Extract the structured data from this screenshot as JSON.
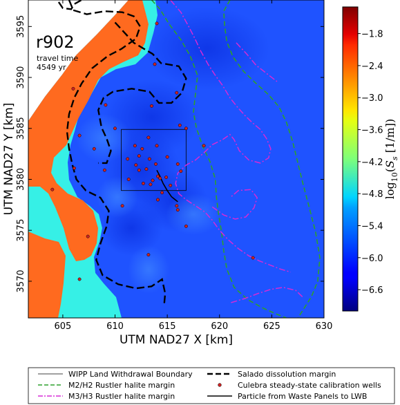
{
  "chart_data": {
    "type": "heatmap",
    "run_label": "r902",
    "annotation": {
      "line1": "travel time",
      "line2": "4549 yr"
    },
    "xlabel": "UTM NAD27 X [km]",
    "ylabel": "UTM NAD27 Y [km]",
    "xlim": [
      601.7,
      630.0
    ],
    "ylim": [
      3566.4,
      3597.6
    ],
    "xticks": [
      605,
      610,
      615,
      620,
      625,
      630
    ],
    "yticks": [
      3570,
      3575,
      3580,
      3585,
      3590,
      3595
    ],
    "colorbar": {
      "label": "log10(S_s [1/m])",
      "range": [
        -7.0,
        -1.3
      ],
      "ticks": [
        -1.8,
        -2.4,
        -3.0,
        -3.6,
        -4.2,
        -4.8,
        -5.4,
        -6.0,
        -6.6
      ],
      "tick_labels": [
        "−1.8",
        "−2.4",
        "−3.0",
        "−3.6",
        "−4.2",
        "−4.8",
        "−5.4",
        "−6.0",
        "−6.6"
      ],
      "colormap": "jet"
    },
    "fields": {
      "background_log_ss": -6.4,
      "orange_zone_log_ss": -2.4,
      "cyan_zone_log_ss": -5.0,
      "colors": {
        "orange": "#ff6a1f",
        "cyan": "#36f0e6",
        "blue": "#1f53ff",
        "dark_blue": "#0a2ee0"
      }
    },
    "wipp_boundary": {
      "x": [
        610.6,
        616.8
      ],
      "y": [
        3578.9,
        3584.9
      ]
    },
    "calibration_wells": [
      [
        614.0,
        3595.3
      ],
      [
        613.8,
        3591.3
      ],
      [
        606.0,
        3588.9
      ],
      [
        615.9,
        3588.5
      ],
      [
        609.1,
        3587.3
      ],
      [
        613.5,
        3587.2
      ],
      [
        616.2,
        3585.3
      ],
      [
        610.0,
        3585.0
      ],
      [
        616.8,
        3585.0
      ],
      [
        606.6,
        3584.3
      ],
      [
        613.2,
        3584.1
      ],
      [
        611.9,
        3583.3
      ],
      [
        614.0,
        3583.3
      ],
      [
        608.0,
        3583.0
      ],
      [
        612.6,
        3583.0
      ],
      [
        618.5,
        3583.3
      ],
      [
        612.3,
        3582.3
      ],
      [
        615.0,
        3582.2
      ],
      [
        613.3,
        3582.0
      ],
      [
        611.2,
        3582.0
      ],
      [
        613.9,
        3581.5
      ],
      [
        612.0,
        3581.4
      ],
      [
        606.1,
        3581.1
      ],
      [
        616.0,
        3581.5
      ],
      [
        613.0,
        3581.0
      ],
      [
        609.0,
        3580.9
      ],
      [
        612.3,
        3580.9
      ],
      [
        614.1,
        3580.3
      ],
      [
        614.3,
        3580.1
      ],
      [
        614.9,
        3580.2
      ],
      [
        611.3,
        3580.0
      ],
      [
        613.6,
        3579.9
      ],
      [
        613.4,
        3579.5
      ],
      [
        612.7,
        3579.6
      ],
      [
        615.3,
        3579.4
      ],
      [
        616.3,
        3580.8
      ],
      [
        614.5,
        3578.7
      ],
      [
        604.0,
        3579.0
      ],
      [
        614.1,
        3578.0
      ],
      [
        610.7,
        3577.4
      ],
      [
        615.9,
        3577.4
      ],
      [
        616.0,
        3577.0
      ],
      [
        616.8,
        3575.4
      ],
      [
        607.4,
        3574.4
      ],
      [
        613.2,
        3572.6
      ],
      [
        623.2,
        3572.3
      ],
      [
        606.6,
        3570.2
      ]
    ],
    "particle_path": [
      [
        614.0,
        3580.9
      ],
      [
        614.3,
        3580.3
      ],
      [
        614.6,
        3579.6
      ],
      [
        615.0,
        3578.9
      ],
      [
        615.4,
        3578.3
      ],
      [
        616.0,
        3577.8
      ]
    ],
    "salado_margin": [
      [
        605.6,
        3597.6
      ],
      [
        606.0,
        3596.6
      ],
      [
        607.3,
        3596.2
      ],
      [
        609.0,
        3596.5
      ],
      [
        610.7,
        3596.4
      ],
      [
        611.8,
        3596.0
      ],
      [
        612.4,
        3595.0
      ],
      [
        612.0,
        3593.8
      ],
      [
        610.6,
        3592.8
      ],
      [
        609.3,
        3592.1
      ],
      [
        607.8,
        3590.9
      ],
      [
        606.8,
        3589.4
      ],
      [
        606.1,
        3588.0
      ],
      [
        605.6,
        3586.4
      ],
      [
        605.4,
        3584.7
      ],
      [
        605.6,
        3583.0
      ],
      [
        605.9,
        3581.5
      ],
      [
        606.3,
        3580.0
      ],
      [
        607.2,
        3578.9
      ],
      [
        608.6,
        3578.2
      ],
      [
        609.4,
        3576.9
      ],
      [
        609.2,
        3575.4
      ],
      [
        608.6,
        3573.7
      ],
      [
        608.2,
        3572.1
      ],
      [
        608.8,
        3570.6
      ],
      [
        610.3,
        3569.7
      ],
      [
        612.0,
        3569.3
      ],
      [
        613.5,
        3569.5
      ],
      [
        614.5,
        3570.2
      ],
      [
        614.8,
        3568.8
      ],
      [
        614.7,
        3567.7
      ]
    ],
    "salado_margin_north": [
      [
        604.6,
        3597.4
      ],
      [
        605.0,
        3596.8
      ],
      [
        605.8,
        3596.7
      ],
      [
        606.1,
        3597.2
      ],
      [
        606.8,
        3597.6
      ]
    ],
    "salado_margin_inner": [
      [
        610.0,
        3595.4
      ],
      [
        611.8,
        3593.4
      ],
      [
        613.6,
        3592.3
      ],
      [
        614.4,
        3591.4
      ],
      [
        616.1,
        3591.1
      ],
      [
        616.8,
        3589.9
      ],
      [
        616.4,
        3588.5
      ],
      [
        615.4,
        3587.5
      ],
      [
        614.2,
        3587.5
      ],
      [
        613.3,
        3588.6
      ],
      [
        611.6,
        3588.9
      ],
      [
        609.8,
        3588.6
      ],
      [
        608.9,
        3588.0
      ],
      [
        608.4,
        3586.8
      ],
      [
        608.7,
        3585.1
      ],
      [
        609.2,
        3584.0
      ],
      [
        609.6,
        3582.8
      ],
      [
        609.2,
        3581.6
      ],
      [
        608.4,
        3581.6
      ]
    ],
    "m2h2_margin": [
      [
        613.5,
        3597.6
      ],
      [
        614.3,
        3596.7
      ],
      [
        615.2,
        3595.2
      ],
      [
        616.3,
        3593.7
      ],
      [
        617.2,
        3592.1
      ],
      [
        617.9,
        3590.2
      ],
      [
        617.7,
        3588.4
      ],
      [
        617.5,
        3586.6
      ],
      [
        617.8,
        3585.0
      ],
      [
        618.4,
        3583.2
      ],
      [
        619.1,
        3581.7
      ],
      [
        619.6,
        3580.0
      ],
      [
        619.7,
        3578.3
      ],
      [
        619.9,
        3576.6
      ],
      [
        620.2,
        3574.8
      ],
      [
        620.4,
        3573.0
      ],
      [
        620.7,
        3571.2
      ],
      [
        621.4,
        3569.4
      ],
      [
        622.7,
        3568.2
      ],
      [
        624.1,
        3567.4
      ],
      [
        625.4,
        3566.8
      ],
      [
        626.4,
        3566.4
      ]
    ],
    "m2h2_margin_east": [
      [
        621.0,
        3597.6
      ],
      [
        620.4,
        3596.5
      ],
      [
        620.5,
        3595.0
      ],
      [
        620.7,
        3593.5
      ],
      [
        621.3,
        3592.0
      ],
      [
        622.3,
        3590.6
      ],
      [
        623.4,
        3589.5
      ],
      [
        624.7,
        3588.3
      ],
      [
        625.7,
        3587.1
      ],
      [
        626.4,
        3585.6
      ],
      [
        627.0,
        3583.7
      ],
      [
        627.5,
        3581.6
      ],
      [
        628.0,
        3579.5
      ],
      [
        628.6,
        3577.2
      ],
      [
        629.2,
        3574.8
      ],
      [
        629.6,
        3572.3
      ],
      [
        629.4,
        3570.0
      ],
      [
        628.8,
        3568.5
      ],
      [
        628.0,
        3567.2
      ],
      [
        627.5,
        3566.4
      ]
    ],
    "m3h3_margin": [
      [
        615.3,
        3597.6
      ],
      [
        616.3,
        3596.4
      ],
      [
        617.0,
        3595.1
      ],
      [
        617.6,
        3593.9
      ],
      [
        618.2,
        3592.6
      ],
      [
        618.9,
        3591.3
      ],
      [
        619.6,
        3590.2
      ],
      [
        620.3,
        3589.2
      ],
      [
        621.0,
        3588.0
      ],
      [
        621.7,
        3587.1
      ],
      [
        622.4,
        3586.3
      ],
      [
        623.1,
        3585.6
      ],
      [
        623.9,
        3584.9
      ],
      [
        624.5,
        3584.0
      ],
      [
        624.9,
        3583.0
      ],
      [
        624.7,
        3582.1
      ],
      [
        623.9,
        3581.6
      ],
      [
        622.8,
        3581.9
      ],
      [
        621.9,
        3582.8
      ],
      [
        621.4,
        3583.9
      ],
      [
        621.0,
        3584.4
      ],
      [
        620.3,
        3583.9
      ],
      [
        619.3,
        3583.4
      ],
      [
        618.5,
        3582.6
      ],
      [
        617.7,
        3581.9
      ],
      [
        616.8,
        3581.4
      ],
      [
        616.0,
        3580.6
      ],
      [
        615.8,
        3579.6
      ],
      [
        616.1,
        3578.6
      ],
      [
        616.8,
        3578.0
      ],
      [
        617.7,
        3577.4
      ],
      [
        618.6,
        3576.8
      ],
      [
        619.3,
        3576.0
      ],
      [
        620.0,
        3575.0
      ],
      [
        620.8,
        3574.1
      ],
      [
        621.8,
        3573.2
      ],
      [
        622.8,
        3572.5
      ],
      [
        623.8,
        3572.0
      ],
      [
        624.8,
        3571.6
      ],
      [
        625.8,
        3571.2
      ],
      [
        626.8,
        3570.9
      ]
    ],
    "m3h3_margin_loop": [
      [
        619.3,
        3577.3
      ],
      [
        620.4,
        3576.5
      ],
      [
        621.5,
        3576.1
      ],
      [
        622.5,
        3576.3
      ],
      [
        623.3,
        3577.2
      ],
      [
        623.6,
        3578.2
      ],
      [
        623.0,
        3579.0
      ],
      [
        621.8,
        3578.9
      ],
      [
        621.0,
        3578.2
      ]
    ],
    "m3h3_margin_south": [
      [
        621.1,
        3567.9
      ],
      [
        622.4,
        3568.3
      ],
      [
        623.7,
        3568.8
      ],
      [
        624.9,
        3569.2
      ],
      [
        626.1,
        3569.4
      ],
      [
        627.3,
        3569.1
      ],
      [
        628.0,
        3568.4
      ]
    ],
    "m3h3_margin_ne": [
      [
        621.6,
        3593.4
      ],
      [
        622.6,
        3592.3
      ],
      [
        623.5,
        3591.2
      ],
      [
        624.5,
        3590.4
      ],
      [
        625.5,
        3589.6
      ]
    ],
    "legend": {
      "items": [
        {
          "label": "WIPP Land Withdrawal Boundary",
          "style": "solid-thin",
          "color": "#000000"
        },
        {
          "label": "M2/H2 Rustler halite margin",
          "style": "dash",
          "color": "#2ca02c"
        },
        {
          "label": "M3/H3 Rustler halite margin",
          "style": "dashdot",
          "color": "#d62ad6"
        },
        {
          "label": "Salado dissolution margin",
          "style": "dash-thick",
          "color": "#000000"
        },
        {
          "label": "Culebra steady-state calibration wells",
          "style": "dot",
          "color": "#cc2222"
        },
        {
          "label": "Particle from Waste Panels to LWB",
          "style": "solid",
          "color": "#000000"
        }
      ]
    }
  }
}
